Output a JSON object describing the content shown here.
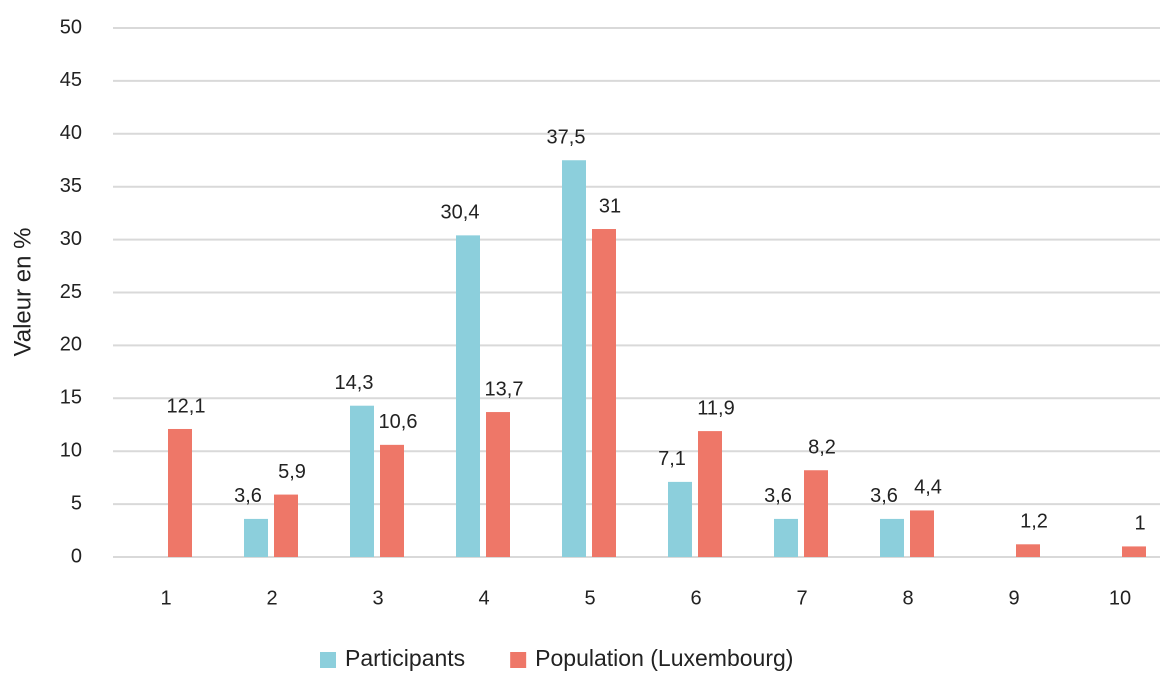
{
  "chart_data": {
    "type": "bar",
    "ylabel": "Valeur en %",
    "categories": [
      "1",
      "2",
      "3",
      "4",
      "5",
      "6",
      "7",
      "8",
      "9",
      "10"
    ],
    "series": [
      {
        "name": "Participants",
        "color": "#8ccfdc",
        "values": [
          null,
          3.6,
          14.3,
          30.4,
          37.5,
          7.1,
          3.6,
          3.6,
          null,
          null
        ],
        "value_labels": [
          null,
          "3,6",
          "14,3",
          "30,4",
          "37,5",
          "7,1",
          "3,6",
          "3,6",
          null,
          null
        ]
      },
      {
        "name": "Population (Luxembourg)",
        "color": "#ee7768",
        "values": [
          12.1,
          5.9,
          10.6,
          13.7,
          31,
          11.9,
          8.2,
          4.4,
          1.2,
          1
        ],
        "value_labels": [
          "12,1",
          "5,9",
          "10,6",
          "13,7",
          "31",
          "11,9",
          "8,2",
          "4,4",
          "1,2",
          "1"
        ]
      }
    ],
    "ylim": [
      0,
      50
    ],
    "yticks": [
      0,
      5,
      10,
      15,
      20,
      25,
      30,
      35,
      40,
      45,
      50
    ],
    "grid": true,
    "legend": "bottom"
  }
}
